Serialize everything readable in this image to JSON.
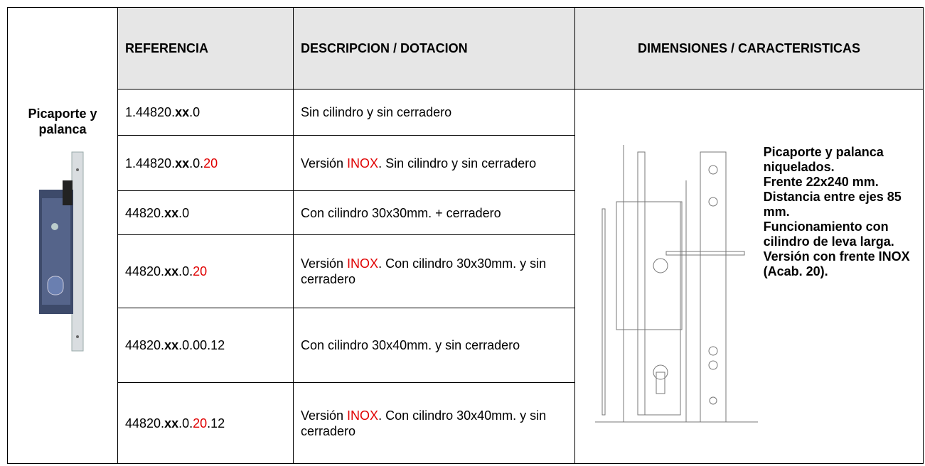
{
  "table": {
    "row_label": "Picaporte y palanca",
    "header": [
      "REFERENCIA",
      "DESCRIPCION / DOTACION",
      "DIMENSIONES / CARACTERISTICAS"
    ],
    "rows": [
      {
        "reference": [
          {
            "text": "1.44820."
          },
          {
            "text": "xx",
            "style": "bold"
          },
          {
            "text": ".0"
          }
        ],
        "description": [
          {
            "text": "Sin cilindro y sin cerradero"
          }
        ]
      },
      {
        "reference": [
          {
            "text": "1.44820."
          },
          {
            "text": "xx",
            "style": "bold"
          },
          {
            "text": ".0."
          },
          {
            "text": "20",
            "style": "red"
          }
        ],
        "description": [
          {
            "text": "Versión "
          },
          {
            "text": "INOX",
            "style": "red"
          },
          {
            "text": ". Sin cilindro y sin cerradero"
          }
        ]
      },
      {
        "reference": [
          {
            "text": "44820."
          },
          {
            "text": "xx",
            "style": "bold"
          },
          {
            "text": ".0"
          }
        ],
        "description": [
          {
            "text": "Con cilindro 30x30mm. + cerradero"
          }
        ]
      },
      {
        "reference": [
          {
            "text": "44820."
          },
          {
            "text": "xx",
            "style": "bold"
          },
          {
            "text": ".0."
          },
          {
            "text": "20",
            "style": "red"
          }
        ],
        "description": [
          {
            "text": "Versión "
          },
          {
            "text": "INOX",
            "style": "red"
          },
          {
            "text": ". Con cilindro 30x30mm. y sin cerradero"
          }
        ]
      },
      {
        "reference": [
          {
            "text": "44820."
          },
          {
            "text": "xx",
            "style": "bold"
          },
          {
            "text": ".0.00.12"
          }
        ],
        "description": [
          {
            "text": "Con cilindro 30x40mm. y sin cerradero"
          }
        ]
      },
      {
        "reference": [
          {
            "text": "44820."
          },
          {
            "text": "xx",
            "style": "bold"
          },
          {
            "text": ".0."
          },
          {
            "text": "20",
            "style": "red"
          },
          {
            "text": ".12"
          }
        ],
        "description": [
          {
            "text": "Versión "
          },
          {
            "text": "INOX",
            "style": "red"
          },
          {
            "text": ". Con cilindro 30x40mm. y sin cerradero"
          }
        ]
      }
    ],
    "characteristics": [
      "Picaporte y palanca niquelados.",
      "Frente 22x240 mm.",
      "Distancia entre ejes 85 mm.",
      "Funcionamiento con cilindro de leva larga.",
      "Versión con frente INOX (Acab. 20)."
    ]
  }
}
